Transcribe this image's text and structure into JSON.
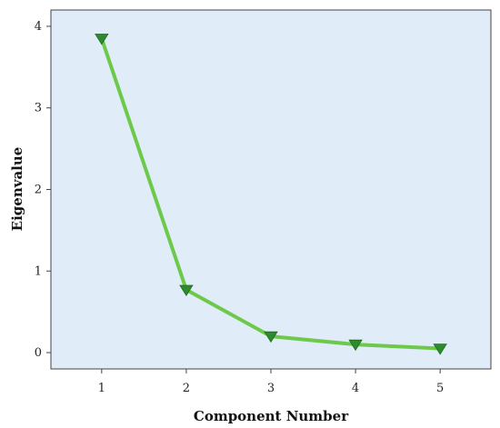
{
  "chart_data": {
    "type": "line",
    "title": "",
    "xlabel": "Component Number",
    "ylabel": "Eigenvalue",
    "x": [
      1,
      2,
      3,
      4,
      5
    ],
    "series": [
      {
        "values": [
          3.85,
          0.77,
          0.2,
          0.1,
          0.05
        ]
      }
    ],
    "xlim": [
      0.4,
      5.6
    ],
    "ylim": [
      -0.2,
      4.2
    ],
    "x_ticks": [
      "1",
      "2",
      "3",
      "4",
      "5"
    ],
    "y_ticks": [
      "0",
      "1",
      "2",
      "3",
      "4"
    ],
    "grid": false,
    "marker": "triangle-down",
    "colors": {
      "plot_background": "#e1ecf9",
      "line": "#6dc94a",
      "marker": "#2e8a2e",
      "frame": "#444444"
    }
  }
}
